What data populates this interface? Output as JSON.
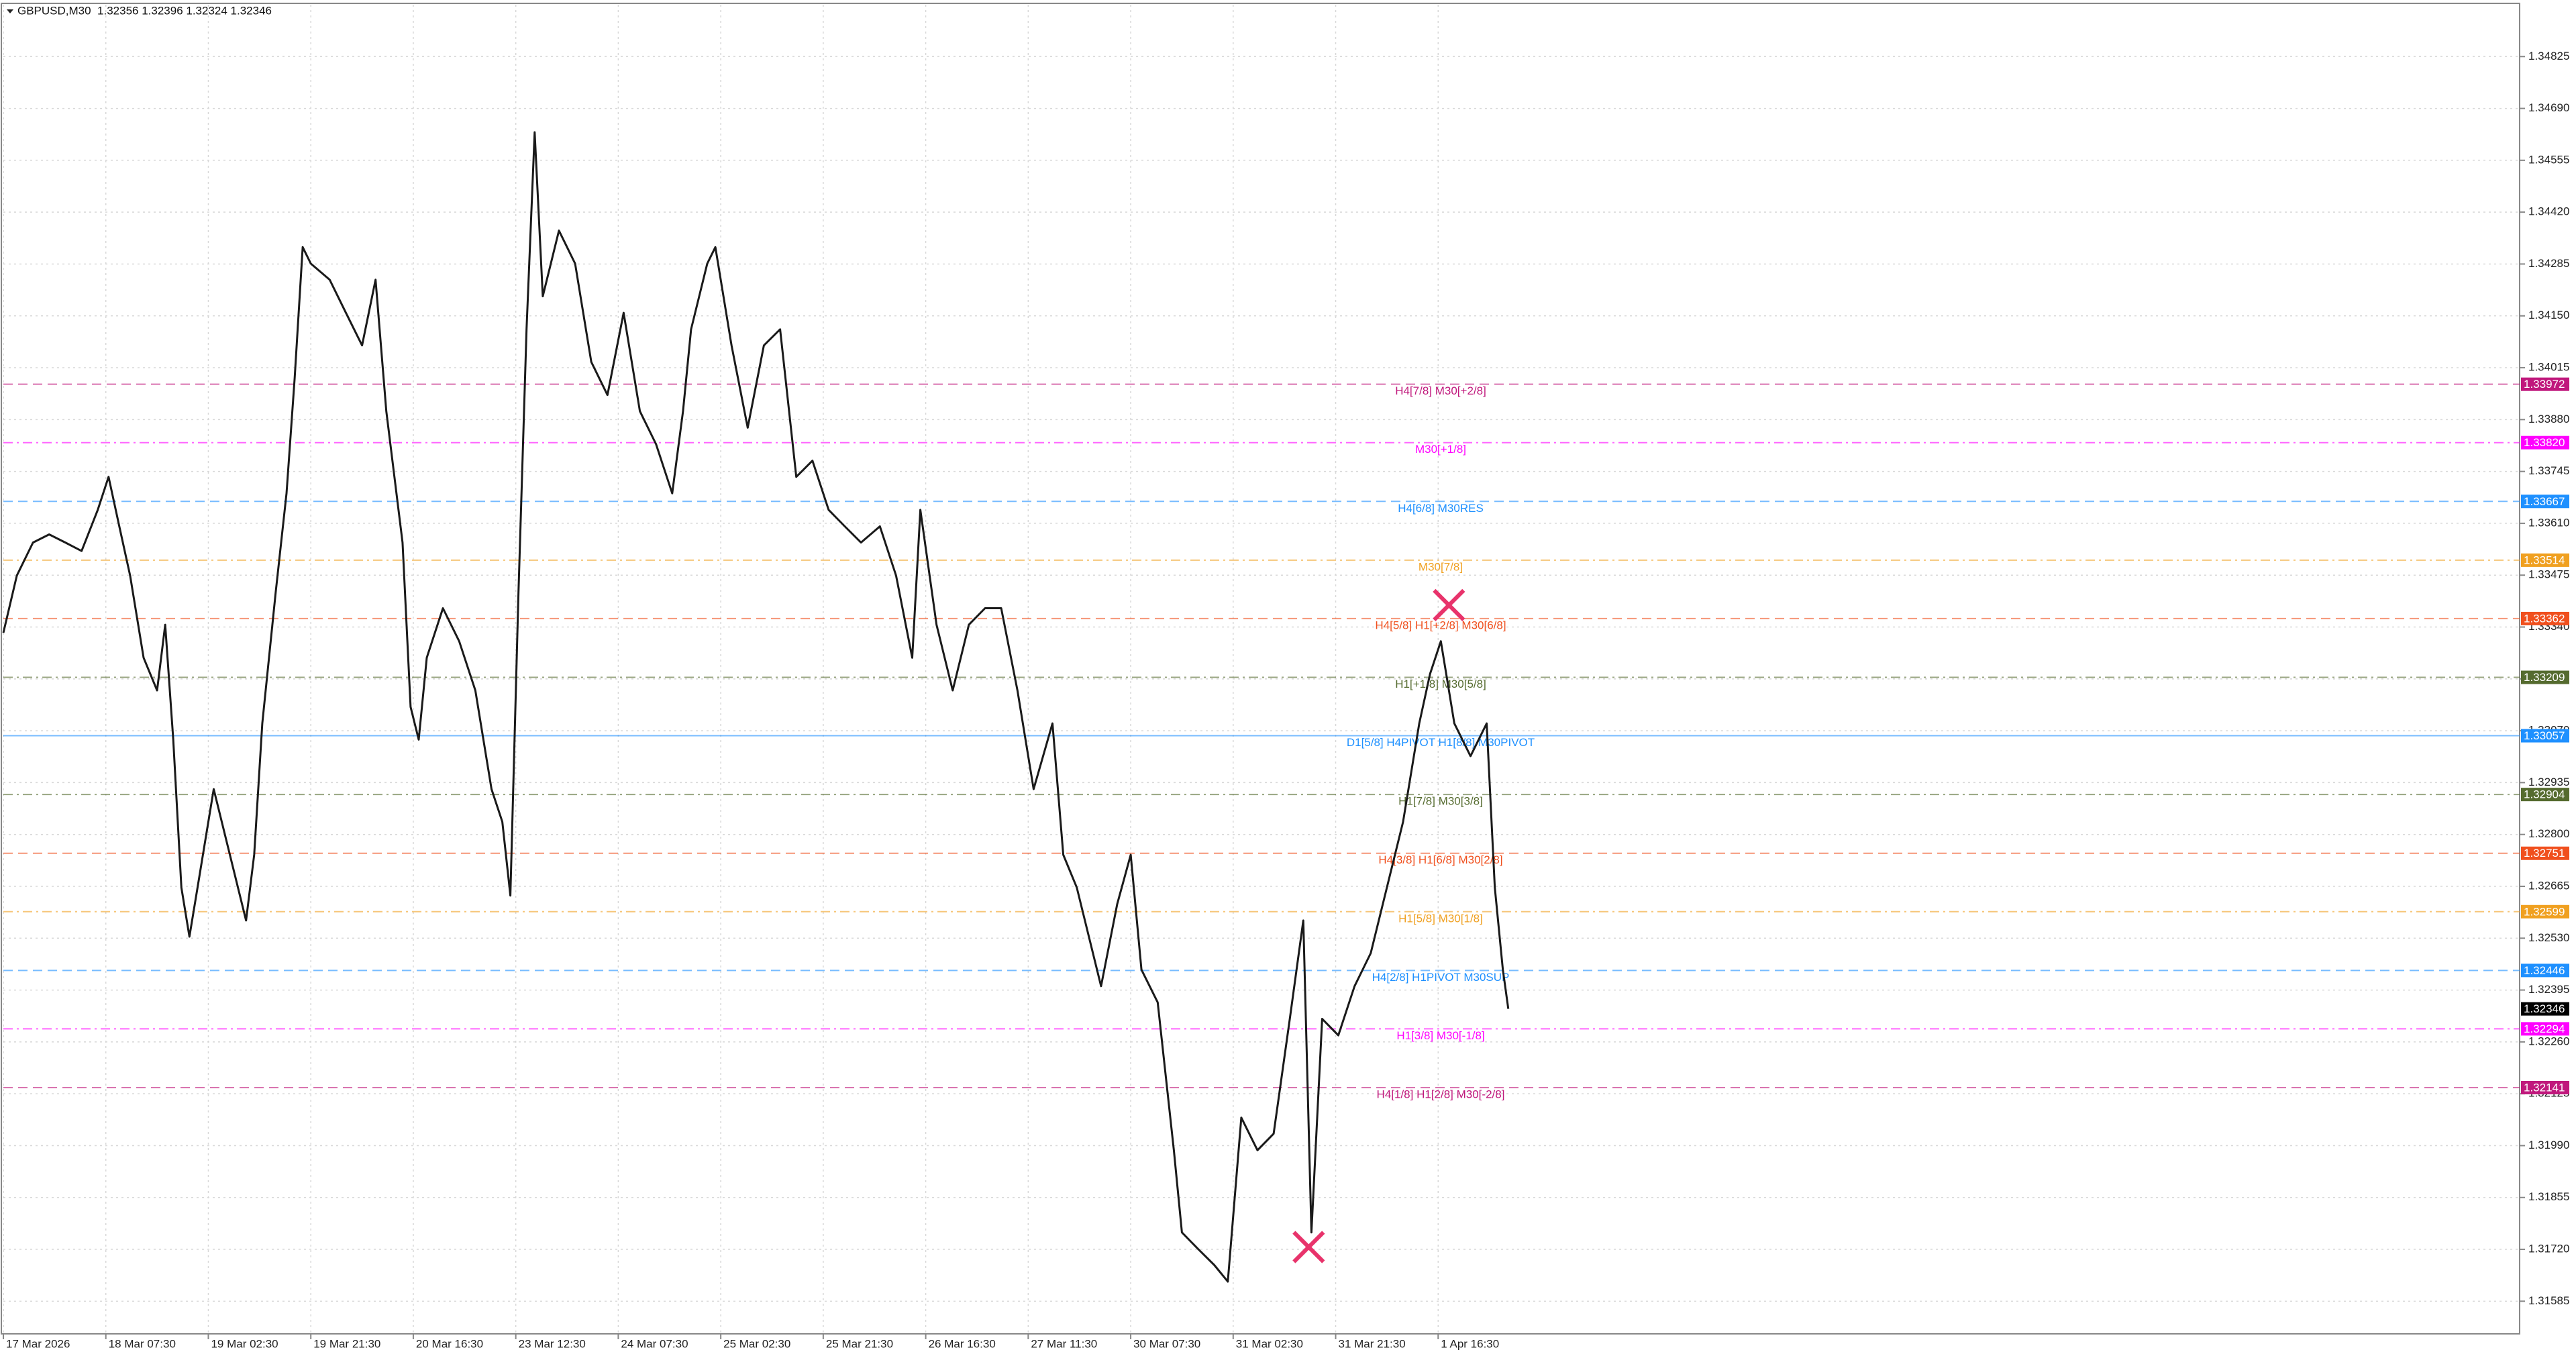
{
  "chart_data": {
    "type": "line",
    "title": "GBPUSD,M30  1.32356 1.32396 1.32324 1.32346",
    "color": "#1a1a1a",
    "grid": true,
    "xlim": [
      0,
      933
    ],
    "xticks": [
      {
        "value": 0,
        "label": "17 Mar 2026"
      },
      {
        "value": 38,
        "label": "18 Mar 07:30"
      },
      {
        "value": 76,
        "label": "19 Mar 02:30"
      },
      {
        "value": 114,
        "label": "19 Mar 21:30"
      },
      {
        "value": 152,
        "label": "20 Mar 16:30"
      },
      {
        "value": 190,
        "label": "23 Mar 12:30"
      },
      {
        "value": 228,
        "label": "24 Mar 07:30"
      },
      {
        "value": 266,
        "label": "25 Mar 02:30"
      },
      {
        "value": 304,
        "label": "25 Mar 21:30"
      },
      {
        "value": 342,
        "label": "26 Mar 16:30"
      },
      {
        "value": 380,
        "label": "27 Mar 11:30"
      },
      {
        "value": 418,
        "label": "30 Mar 07:30"
      },
      {
        "value": 456,
        "label": "31 Mar 02:30"
      },
      {
        "value": 494,
        "label": "31 Mar 21:30"
      },
      {
        "value": 532,
        "label": "1 Apr 16:30"
      }
    ],
    "ylim": [
      1.315,
      1.3496
    ],
    "yticks": [
      1.34825,
      {
        "value": 1.3469,
        "label": "1.34690"
      },
      1.34555,
      {
        "value": 1.3442,
        "label": "1.34420"
      },
      1.34285,
      {
        "value": 1.3415,
        "label": "1.34150"
      },
      1.34015,
      {
        "value": 1.3388,
        "label": "1.33880"
      },
      1.33745,
      {
        "value": 1.3361,
        "label": "1.33610"
      },
      1.33475,
      {
        "value": 1.3334,
        "label": "1.33340"
      },
      1.33205,
      {
        "value": 1.3307,
        "label": "1.33070"
      },
      1.32935,
      {
        "value": 1.328,
        "label": "1.32800"
      },
      1.32665,
      {
        "value": 1.3253,
        "label": "1.32530"
      },
      1.32395,
      {
        "value": 1.3226,
        "label": "1.32260"
      },
      1.32125,
      {
        "value": 1.3199,
        "label": "1.31990"
      },
      1.31855,
      {
        "value": 1.3172,
        "label": "1.31720"
      },
      1.31585
    ],
    "x": [
      0,
      5,
      11,
      17,
      23,
      29,
      35,
      39,
      43,
      47,
      52,
      57,
      60,
      63,
      66,
      69,
      72,
      78,
      84,
      90,
      93,
      96,
      101,
      105,
      108,
      111,
      114,
      121,
      127,
      133,
      138,
      142,
      145,
      148,
      151,
      154,
      157,
      163,
      169,
      175,
      181,
      185,
      188,
      191,
      194,
      197,
      200,
      206,
      212,
      218,
      224,
      230,
      236,
      242,
      248,
      252,
      255,
      261,
      264,
      270,
      276,
      282,
      288,
      294,
      300,
      306,
      312,
      318,
      325,
      331,
      337,
      340,
      346,
      352,
      358,
      364,
      370,
      376,
      382,
      389,
      393,
      398,
      404,
      407,
      413,
      418,
      422,
      428,
      434,
      437,
      443,
      449,
      454,
      459,
      465,
      471,
      477,
      482,
      485,
      489,
      495,
      501,
      507,
      513,
      519,
      525,
      529,
      533,
      538,
      544,
      550,
      553,
      556,
      558
    ],
    "values": [
      1.33325,
      1.33474,
      1.3356,
      1.33581,
      1.3356,
      1.33538,
      1.33645,
      1.33731,
      1.33602,
      1.33474,
      1.3326,
      1.33175,
      1.33346,
      1.33047,
      1.32662,
      1.32534,
      1.32662,
      1.32918,
      1.32747,
      1.32576,
      1.32747,
      1.33089,
      1.33431,
      1.33688,
      1.33987,
      1.34329,
      1.34286,
      1.34244,
      1.34158,
      1.34073,
      1.34244,
      1.33902,
      1.33731,
      1.3356,
      1.33132,
      1.33047,
      1.3326,
      1.33389,
      1.33303,
      1.33175,
      1.32918,
      1.32833,
      1.32641,
      1.33431,
      1.34115,
      1.34628,
      1.34201,
      1.34372,
      1.34286,
      1.3403,
      1.33944,
      1.34158,
      1.33902,
      1.33816,
      1.33688,
      1.33902,
      1.34115,
      1.34286,
      1.34329,
      1.34073,
      1.33859,
      1.34073,
      1.34115,
      1.33731,
      1.33773,
      1.33645,
      1.33602,
      1.3356,
      1.33602,
      1.33474,
      1.3326,
      1.33645,
      1.33346,
      1.33175,
      1.33346,
      1.33389,
      1.33389,
      1.33175,
      1.32918,
      1.33089,
      1.32747,
      1.32662,
      1.32491,
      1.32405,
      1.32619,
      1.32747,
      1.32448,
      1.32363,
      1.31978,
      1.31764,
      1.31721,
      1.31679,
      1.31636,
      1.32063,
      1.31978,
      1.32021,
      1.3232,
      1.32576,
      1.31764,
      1.3232,
      1.32277,
      1.32405,
      1.32491,
      1.32662,
      1.32833,
      1.33089,
      1.33218,
      1.33303,
      1.33089,
      1.33004,
      1.33089,
      1.32662,
      1.32448,
      1.32346
    ],
    "markers": {
      "x": [
        536,
        484
      ],
      "values": [
        1.33397,
        1.31726
      ],
      "color": "#e8336b"
    },
    "levels": {
      "names": [
        "H4[7/8] M30[+2/8]",
        "M30[+1/8]",
        "H4[6/8] M30RES",
        "M30[7/8]",
        "H4[5/8] H1[+2/8] M30[6/8]",
        "H1[+1/8] M30[5/8]",
        "D1[5/8] H4PIVOT H1[8/8] M30PIVOT",
        "H1[7/8] M30[3/8]",
        "H4[3/8] H1[6/8] M30[2/8]",
        "H1[5/8] M30[1/8]",
        "H4[2/8] H1PIVOT M30SUP",
        "H1[3/8] M30[-1/8]",
        "H4[1/8] H1[2/8] M30[-2/8]"
      ],
      "values": [
        1.33972,
        1.3382,
        1.33667,
        1.33514,
        1.33362,
        1.33209,
        1.33057,
        1.32904,
        1.32751,
        1.32599,
        1.32446,
        1.32294,
        1.32141
      ],
      "value_labels": [
        "1.33972",
        "1.33820",
        "1.33667",
        "1.33514",
        "1.33362",
        "1.33209",
        "1.33057",
        "1.32904",
        "1.32751",
        "1.32599",
        "1.32446",
        "1.32294",
        "1.32141"
      ],
      "colors": [
        "#c0187c",
        "#ff00ff",
        "#1e90ff",
        "#f0a020",
        "#f0501e",
        "#556b2f",
        "#1e90ff",
        "#556b2f",
        "#f0501e",
        "#f0a020",
        "#1e90ff",
        "#ff00ff",
        "#c0187c"
      ],
      "styles": [
        "dashed",
        "dashdot",
        "dashed",
        "dashdot",
        "dashed",
        "dashdot",
        "solid",
        "dashdot",
        "dashed",
        "dashdot",
        "dashed",
        "dashdot",
        "dashed"
      ]
    },
    "last_price": 1.32346,
    "last_price_label": "1.32346"
  }
}
